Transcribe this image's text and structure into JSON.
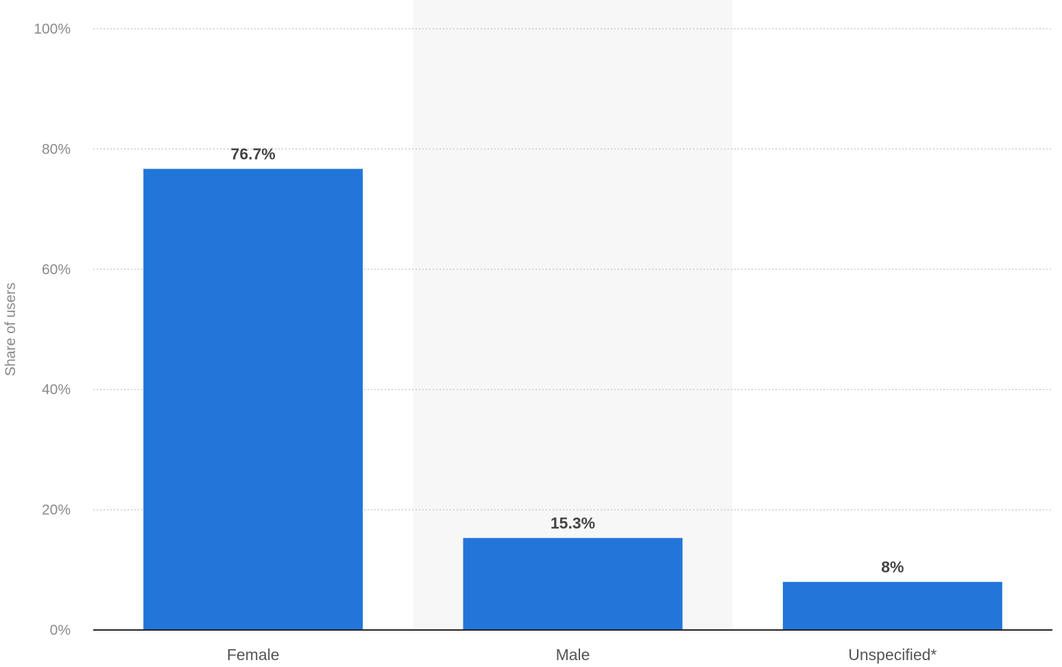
{
  "chart_data": {
    "type": "bar",
    "categories": [
      "Female",
      "Male",
      "Unspecified*"
    ],
    "values": [
      76.7,
      15.3,
      8
    ],
    "value_labels": [
      "76.7%",
      "15.3%",
      "8%"
    ],
    "title": "",
    "xlabel": "",
    "ylabel": "Share of users",
    "ylim": [
      0,
      100
    ],
    "yticks": [
      0,
      20,
      40,
      60,
      80,
      100
    ],
    "ytick_labels": [
      "0%",
      "20%",
      "40%",
      "60%",
      "80%",
      "100%"
    ],
    "grid": true,
    "legend": "none",
    "bar_color": "#2275d9",
    "highlight_band_color": "#f7f7f7"
  }
}
